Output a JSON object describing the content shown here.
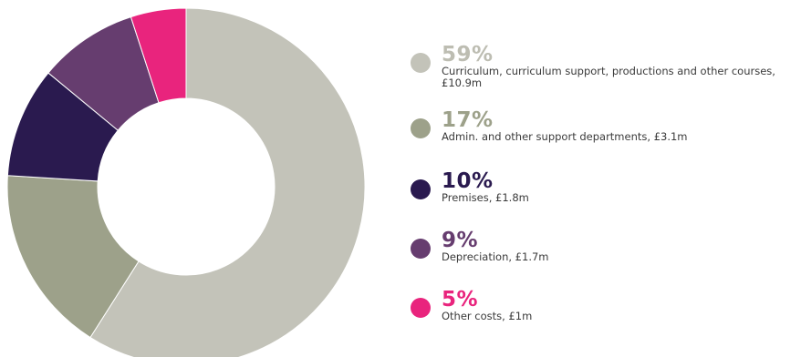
{
  "chart_data": {
    "type": "pie",
    "donut": true,
    "slices": [
      {
        "percent_label": "59%",
        "value": 59,
        "label": "Curriculum, curriculum support, productions and other courses, £10.9m",
        "color": "#c3c3b9",
        "label_color": "#bdbdb2"
      },
      {
        "percent_label": "17%",
        "value": 17,
        "label": "Admin. and other support departments, £3.1m",
        "color": "#9da18a",
        "label_color": "#9da18a"
      },
      {
        "percent_label": "10%",
        "value": 10,
        "label": "Premises, £1.8m",
        "color": "#2a1a4f",
        "label_color": "#2a1a4f"
      },
      {
        "percent_label": "9%",
        "value": 9,
        "label": "Depreciation, £1.7m",
        "color": "#663d6f",
        "label_color": "#663d6f"
      },
      {
        "percent_label": "5%",
        "value": 5,
        "label": "Other costs, £1m",
        "color": "#e9247d",
        "label_color": "#e9247d"
      }
    ]
  }
}
